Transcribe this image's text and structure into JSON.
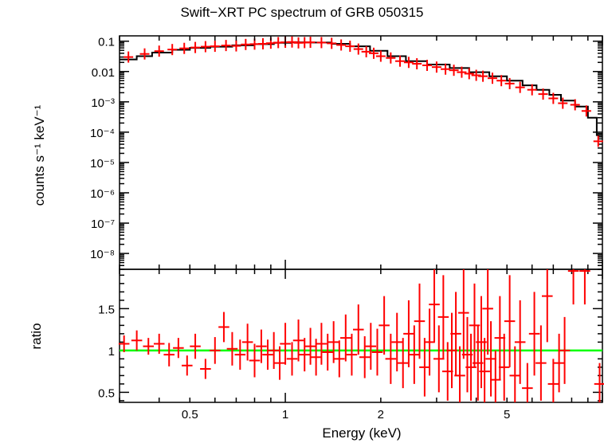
{
  "title": "Swift−XRT PC spectrum of GRB 050315",
  "colors": {
    "data": "#ff0000",
    "model": "#000000",
    "ratio_line": "#00ff00",
    "axes": "#000000"
  },
  "chart_data": [
    {
      "type": "scatter",
      "panel": "top",
      "ylabel": "counts s⁻¹ keV⁻¹",
      "yscale": "log",
      "ylim": [
        3e-09,
        0.15
      ],
      "xscale": "log",
      "xlim": [
        0.3,
        10
      ],
      "y_ticks": [
        {
          "value": 0.1,
          "label": "0.1"
        },
        {
          "value": 0.01,
          "label": "0.01"
        },
        {
          "value": 0.001,
          "label": "10⁻³"
        },
        {
          "value": 0.0001,
          "label": "10⁻⁴"
        },
        {
          "value": 1e-05,
          "label": "10⁻⁵"
        },
        {
          "value": 1e-06,
          "label": "10⁻⁶"
        },
        {
          "value": 1e-07,
          "label": "10⁻⁷"
        },
        {
          "value": 1e-08,
          "label": "10⁻⁸"
        }
      ],
      "series": [
        {
          "kind": "data",
          "points": [
            [
              0.32,
              0.03
            ],
            [
              0.36,
              0.038
            ],
            [
              0.4,
              0.047
            ],
            [
              0.44,
              0.053
            ],
            [
              0.48,
              0.058
            ],
            [
              0.52,
              0.062
            ],
            [
              0.56,
              0.066
            ],
            [
              0.6,
              0.068
            ],
            [
              0.65,
              0.072
            ],
            [
              0.7,
              0.07
            ],
            [
              0.75,
              0.078
            ],
            [
              0.8,
              0.08
            ],
            [
              0.85,
              0.082
            ],
            [
              0.9,
              0.086
            ],
            [
              0.95,
              0.09
            ],
            [
              1.0,
              0.092
            ],
            [
              1.05,
              0.094
            ],
            [
              1.1,
              0.088
            ],
            [
              1.15,
              0.09
            ],
            [
              1.2,
              0.092
            ],
            [
              1.3,
              0.09
            ],
            [
              1.4,
              0.085
            ],
            [
              1.5,
              0.075
            ],
            [
              1.6,
              0.068
            ],
            [
              1.7,
              0.055
            ],
            [
              1.8,
              0.045
            ],
            [
              1.9,
              0.04
            ],
            [
              2.0,
              0.032
            ],
            [
              2.15,
              0.028
            ],
            [
              2.3,
              0.022
            ],
            [
              2.45,
              0.02
            ],
            [
              2.6,
              0.018
            ],
            [
              2.8,
              0.016
            ],
            [
              3.0,
              0.014
            ],
            [
              3.2,
              0.012
            ],
            [
              3.4,
              0.011
            ],
            [
              3.6,
              0.0095
            ],
            [
              3.8,
              0.0085
            ],
            [
              4.0,
              0.0075
            ],
            [
              4.2,
              0.007
            ],
            [
              4.5,
              0.006
            ],
            [
              4.8,
              0.005
            ],
            [
              5.1,
              0.004
            ],
            [
              5.5,
              0.003
            ],
            [
              6.0,
              0.0025
            ],
            [
              6.5,
              0.0018
            ],
            [
              7.0,
              0.0013
            ],
            [
              7.5,
              0.0009
            ],
            [
              8.2,
              0.0008
            ],
            [
              8.9,
              0.0005
            ],
            [
              9.7,
              5e-05
            ]
          ]
        },
        {
          "kind": "model",
          "steps": [
            [
              0.3,
              0.025
            ],
            [
              0.34,
              0.032
            ],
            [
              0.38,
              0.042
            ],
            [
              0.44,
              0.052
            ],
            [
              0.5,
              0.06
            ],
            [
              0.58,
              0.066
            ],
            [
              0.68,
              0.073
            ],
            [
              0.8,
              0.08
            ],
            [
              0.92,
              0.088
            ],
            [
              1.05,
              0.092
            ],
            [
              1.2,
              0.09
            ],
            [
              1.4,
              0.082
            ],
            [
              1.6,
              0.068
            ],
            [
              1.85,
              0.048
            ],
            [
              2.1,
              0.032
            ],
            [
              2.4,
              0.022
            ],
            [
              2.8,
              0.017
            ],
            [
              3.3,
              0.013
            ],
            [
              3.8,
              0.0095
            ],
            [
              4.4,
              0.007
            ],
            [
              5.0,
              0.005
            ],
            [
              5.6,
              0.0035
            ],
            [
              6.2,
              0.0025
            ],
            [
              6.8,
              0.0017
            ],
            [
              7.4,
              0.0011
            ],
            [
              8.2,
              0.0007
            ],
            [
              9.0,
              0.0003
            ],
            [
              9.6,
              8e-05
            ],
            [
              10.0,
              8e-05
            ]
          ]
        }
      ]
    },
    {
      "type": "scatter",
      "panel": "bottom",
      "xlabel": "Energy (keV)",
      "ylabel": "ratio",
      "xscale": "log",
      "xlim": [
        0.3,
        10
      ],
      "ylim": [
        0.38,
        1.97
      ],
      "y_ticks": [
        {
          "value": 0.5,
          "label": "0.5"
        },
        {
          "value": 1,
          "label": "1"
        },
        {
          "value": 1.5,
          "label": "1.5"
        }
      ],
      "x_ticks": [
        {
          "value": 0.5,
          "label": "0.5"
        },
        {
          "value": 1,
          "label": "1"
        },
        {
          "value": 2,
          "label": "2"
        },
        {
          "value": 5,
          "label": "5"
        }
      ],
      "reference_line": 1,
      "series": [
        {
          "kind": "data",
          "points": [
            [
              0.31,
              1.08,
              0.1
            ],
            [
              0.34,
              1.12,
              0.12
            ],
            [
              0.37,
              1.05,
              0.1
            ],
            [
              0.4,
              1.08,
              0.12
            ],
            [
              0.43,
              0.95,
              0.14
            ],
            [
              0.46,
              1.03,
              0.12
            ],
            [
              0.49,
              0.82,
              0.12
            ],
            [
              0.52,
              1.05,
              0.15
            ],
            [
              0.56,
              0.78,
              0.12
            ],
            [
              0.6,
              1.0,
              0.16
            ],
            [
              0.64,
              1.28,
              0.18
            ],
            [
              0.68,
              1.02,
              0.2
            ],
            [
              0.72,
              0.95,
              0.18
            ],
            [
              0.76,
              1.1,
              0.22
            ],
            [
              0.8,
              0.88,
              0.2
            ],
            [
              0.84,
              1.05,
              0.2
            ],
            [
              0.88,
              0.95,
              0.18
            ],
            [
              0.92,
              1.0,
              0.22
            ],
            [
              0.96,
              0.85,
              0.2
            ],
            [
              1.0,
              1.08,
              0.25
            ],
            [
              1.05,
              0.9,
              0.2
            ],
            [
              1.1,
              1.12,
              0.25
            ],
            [
              1.15,
              0.95,
              0.2
            ],
            [
              1.2,
              1.05,
              0.22
            ],
            [
              1.25,
              0.92,
              0.22
            ],
            [
              1.3,
              1.08,
              0.25
            ],
            [
              1.36,
              0.98,
              0.22
            ],
            [
              1.42,
              1.1,
              0.25
            ],
            [
              1.48,
              0.9,
              0.22
            ],
            [
              1.55,
              1.15,
              0.28
            ],
            [
              1.62,
              0.95,
              0.25
            ],
            [
              1.7,
              1.25,
              0.3
            ],
            [
              1.78,
              0.92,
              0.25
            ],
            [
              1.86,
              1.05,
              0.28
            ],
            [
              1.95,
              0.98,
              0.28
            ],
            [
              2.05,
              1.3,
              0.35
            ],
            [
              2.15,
              0.9,
              0.3
            ],
            [
              2.25,
              1.1,
              0.35
            ],
            [
              2.35,
              0.85,
              0.3
            ],
            [
              2.45,
              1.2,
              0.4
            ],
            [
              2.55,
              0.95,
              0.35
            ],
            [
              2.65,
              1.35,
              0.45
            ],
            [
              2.75,
              0.8,
              0.35
            ],
            [
              2.85,
              1.1,
              0.4
            ],
            [
              2.95,
              1.55,
              0.45
            ],
            [
              3.05,
              0.9,
              0.4
            ],
            [
              3.15,
              1.4,
              0.5
            ],
            [
              3.25,
              0.75,
              0.35
            ],
            [
              3.35,
              1.0,
              0.45
            ],
            [
              3.45,
              1.2,
              0.5
            ],
            [
              3.55,
              0.7,
              0.35
            ],
            [
              3.65,
              1.45,
              0.55
            ],
            [
              3.75,
              0.95,
              0.45
            ],
            [
              3.85,
              0.8,
              0.4
            ],
            [
              3.95,
              1.3,
              0.5
            ],
            [
              4.05,
              0.85,
              0.45
            ],
            [
              4.15,
              1.1,
              0.55
            ],
            [
              4.25,
              0.75,
              0.4
            ],
            [
              4.35,
              1.5,
              0.55
            ],
            [
              4.45,
              0.9,
              0.45
            ],
            [
              4.6,
              0.65,
              0.35
            ],
            [
              4.75,
              1.15,
              0.5
            ],
            [
              4.9,
              0.8,
              0.4
            ],
            [
              5.1,
              1.35,
              0.55
            ],
            [
              5.3,
              0.7,
              0.35
            ],
            [
              5.5,
              1.1,
              0.5
            ],
            [
              5.8,
              0.55,
              0.3
            ],
            [
              6.1,
              1.2,
              0.5
            ],
            [
              6.4,
              0.85,
              0.45
            ],
            [
              6.7,
              1.65,
              0.55
            ],
            [
              7.0,
              0.6,
              0.3
            ],
            [
              7.3,
              0.85,
              0.35
            ],
            [
              7.6,
              1.0,
              0.4
            ],
            [
              8.1,
              1.95,
              0.4
            ],
            [
              8.8,
              1.95,
              0.4
            ],
            [
              9.8,
              0.6,
              0.25
            ]
          ]
        }
      ]
    }
  ]
}
